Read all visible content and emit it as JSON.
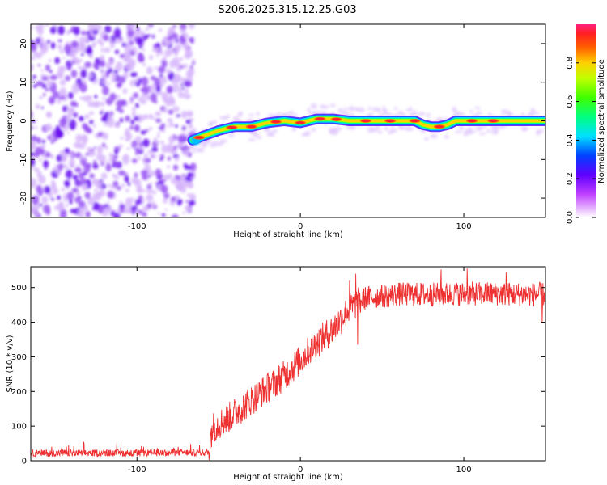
{
  "title": "S206.2025.315.12.25.G03",
  "colors": {
    "snr_line": "#ee3030",
    "axis": "#000000",
    "background": "#ffffff"
  },
  "chart_data": [
    {
      "type": "heatmap",
      "name": "spectrogram",
      "xlabel": "Height of straight line (km)",
      "ylabel": "Frequency (Hz)",
      "xlim": [
        -165,
        150
      ],
      "ylim": [
        -25,
        25
      ],
      "xticks": [
        -100,
        0,
        100
      ],
      "yticks": [
        -20,
        -10,
        0,
        10,
        20
      ],
      "noise_region_x": [
        -165,
        -65
      ],
      "ridge": {
        "x": [
          -66,
          -60,
          -50,
          -40,
          -30,
          -20,
          -10,
          0,
          10,
          20,
          30,
          40,
          50,
          60,
          70,
          75,
          80,
          85,
          90,
          95,
          100,
          110,
          120,
          130,
          140,
          150
        ],
        "freq": [
          -5,
          -4,
          -2.5,
          -1.5,
          -1.5,
          -0.5,
          0,
          -0.5,
          0.5,
          0.5,
          0,
          0,
          0,
          0,
          0,
          -1,
          -1.5,
          -1.5,
          -1,
          0,
          0,
          0,
          0,
          0,
          0,
          0
        ]
      },
      "hotspots_x": [
        -62,
        -42,
        -30,
        -15,
        0,
        12,
        22,
        40,
        55,
        70,
        85,
        105,
        118
      ],
      "colorbar": {
        "label": "Normalized spectral amplitude",
        "range": [
          0,
          1
        ],
        "ticks": [
          "0.0",
          "0.2",
          "0.4",
          "0.6",
          "0.8"
        ],
        "tick_values": [
          0.0,
          0.2,
          0.4,
          0.6,
          0.8
        ]
      }
    },
    {
      "type": "line",
      "name": "snr",
      "xlabel": "Height of straight line (km)",
      "ylabel": "SNR (10 * v/v)",
      "xlim": [
        -165,
        150
      ],
      "ylim": [
        0,
        560
      ],
      "xticks": [
        -100,
        0,
        100
      ],
      "yticks": [
        0,
        100,
        200,
        300,
        400,
        500
      ],
      "trend": {
        "x": [
          -165,
          -100,
          -56,
          -54,
          -45,
          -30,
          -20,
          -10,
          0,
          10,
          20,
          30,
          35,
          40,
          60,
          80,
          100,
          120,
          140,
          150
        ],
        "y": [
          22,
          22,
          24,
          95,
          120,
          175,
          210,
          245,
          290,
          340,
          380,
          440,
          455,
          470,
          480,
          480,
          482,
          482,
          480,
          480
        ]
      },
      "noise_amplitude": {
        "low_region": 10,
        "ramp_region": 45,
        "plateau_region": 35
      },
      "peaks": [
        {
          "x": 30,
          "y": 520
        },
        {
          "x": 34,
          "y": 540
        },
        {
          "x": 86,
          "y": 552
        },
        {
          "x": 102,
          "y": 555
        },
        {
          "x": 126,
          "y": 545
        }
      ],
      "dips": [
        {
          "x": 35,
          "y": 335
        },
        {
          "x": 148,
          "y": 400
        }
      ]
    }
  ]
}
